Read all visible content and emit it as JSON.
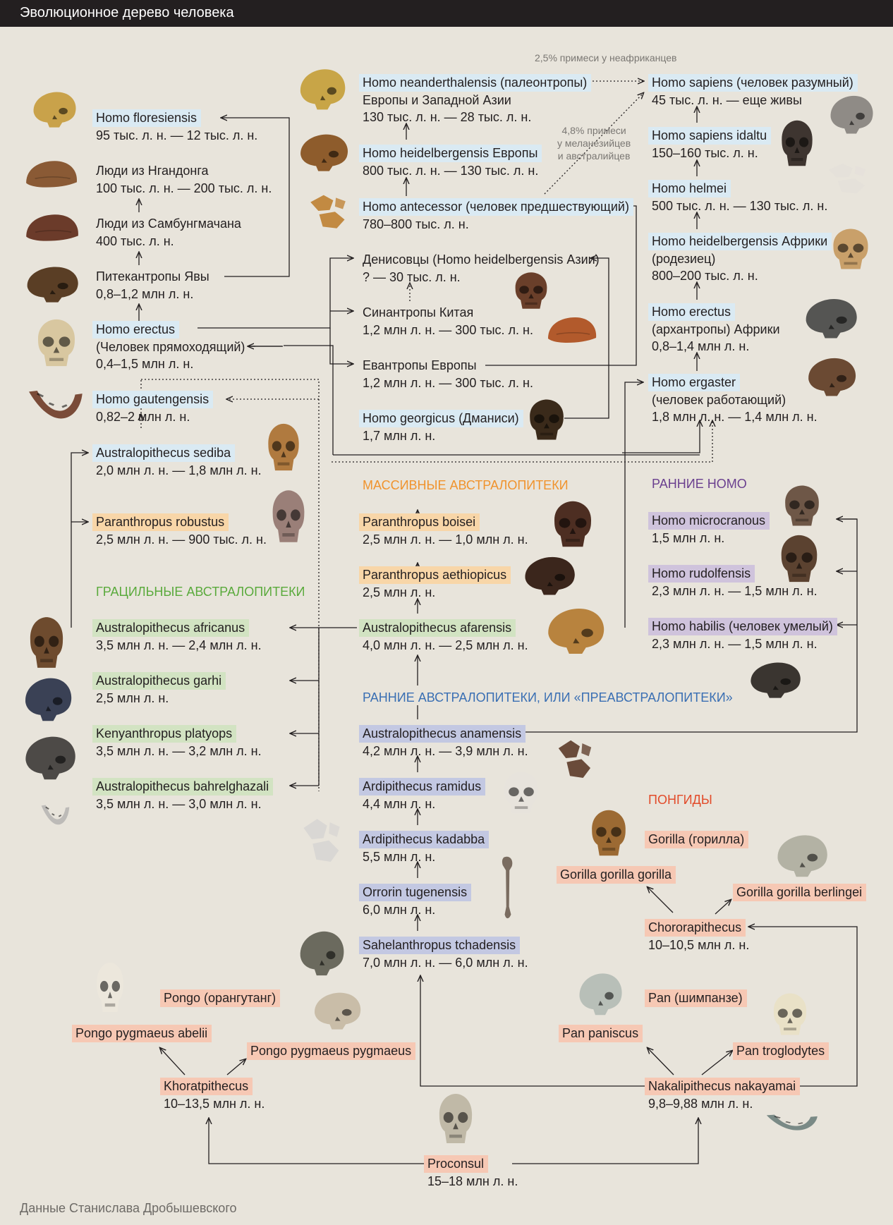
{
  "header": {
    "title": "Эволюционное дерево человека"
  },
  "footer": {
    "source": "Данные Станислава Дробышевского"
  },
  "groups": {
    "massive": "МАССИВНЫЕ АВСТРАЛОПИТЕКИ",
    "early_homo": "РАННИЕ HOMO",
    "gracile": "ГРАЦИЛЬНЫЕ АВСТРАЛОПИТЕКИ",
    "early_australopiths": "РАННИЕ АВСТРАЛОПИТЕКИ, ИЛИ «ПРЕАВСТРАЛОПИТЕКИ»",
    "pongids": "ПОНГИДЫ"
  },
  "colors": {
    "homo": "#daeaf3",
    "early_homo": "#cfc3dc",
    "gracile": "#d2e3c2",
    "massive": "#f8d6a8",
    "early_australopiths": "#c3c8e2",
    "apes": "#f6c8b4",
    "group_massive": "#f0932d",
    "group_early_homo": "#6a3f8f",
    "group_gracile": "#5aaa3c",
    "group_early_australopiths": "#3a6fb3",
    "group_pongids": "#e24b2a"
  },
  "notes": {
    "admix_non_african": "2,5% примеси у неафриканцев",
    "admix_melanesian": [
      "4,8% примеси",
      "у меланезийцев",
      "и австралийцев"
    ]
  },
  "nodes": {
    "floresiensis": {
      "name": "Homo floresiensis",
      "lines": [
        "95 тыс. л. н. — 12 тыс. л. н."
      ]
    },
    "ngandong": {
      "name": "Люди из Нгандонга",
      "lines": [
        "100 тыс. л. н. — 200 тыс. л. н."
      ]
    },
    "sambungmachan": {
      "name": "Люди из Самбунгмачана",
      "lines": [
        "400 тыс. л. н."
      ]
    },
    "java": {
      "name": "Питекантропы Явы",
      "lines": [
        "0,8–1,2 млн л. н."
      ]
    },
    "erectus": {
      "name": "Homo erectus",
      "lines": [
        "(Человек прямоходящий)",
        "0,4–1,5 млн л. н."
      ]
    },
    "gautengensis": {
      "name": "Homo gautengensis",
      "lines": [
        "0,82–2 млн л. н."
      ]
    },
    "sediba": {
      "name": "Australopithecus sediba",
      "lines": [
        "2,0 млн л. н. — 1,8 млн л. н."
      ]
    },
    "robustus": {
      "name": "Paranthropus robustus",
      "lines": [
        "2,5 млн л. н. — 900 тыс. л. н."
      ]
    },
    "africanus": {
      "name": "Australopithecus africanus",
      "lines": [
        "3,5 млн л. н. — 2,4 млн л. н."
      ]
    },
    "garhi": {
      "name": "Australopithecus garhi",
      "lines": [
        "2,5 млн л. н."
      ]
    },
    "platyops": {
      "name": "Kenyanthropus platyops",
      "lines": [
        "3,5 млн л. н. — 3,2 млн л. н."
      ]
    },
    "bahrelghazali": {
      "name": "Australopithecus bahrelghazali",
      "lines": [
        "3,5 млн л. н. — 3,0 млн л. н."
      ]
    },
    "neanderthalensis": {
      "name": "Homo neanderthalensis (палеонтропы)",
      "lines": [
        "Европы и Западной Азии",
        "130 тыс. л. н. — 28 тыс. л. н."
      ]
    },
    "heidelbergensis_eu": {
      "name": "Homo heidelbergensis Европы",
      "lines": [
        "800 тыс. л. н. — 130 тыс. л. н."
      ]
    },
    "antecessor": {
      "name": "Homo antecessor (человек предшествующий)",
      "lines": [
        "780–800 тыс. л. н."
      ]
    },
    "denisovans": {
      "name": "Денисовцы (Homo heidelbergensis Азии)",
      "lines": [
        "? — 30 тыс. л. н."
      ]
    },
    "sinanthropus": {
      "name": "Синантропы Китая",
      "lines": [
        "1,2 млн л. н. — 300 тыс. л. н."
      ]
    },
    "euanthropus": {
      "name": "Евантропы Европы",
      "lines": [
        "1,2 млн л. н. — 300 тыс. л. н."
      ]
    },
    "georgicus": {
      "name": "Homo georgicus (Дманиси)",
      "lines": [
        "1,7 млн л. н."
      ]
    },
    "boisei": {
      "name": "Paranthropus boisei",
      "lines": [
        "2,5 млн л. н. — 1,0 млн л. н."
      ]
    },
    "aethiopicus": {
      "name": "Paranthropus aethiopicus",
      "lines": [
        "2,5 млн л. н."
      ]
    },
    "afarensis": {
      "name": "Australopithecus afarensis",
      "lines": [
        "4,0 млн л. н. — 2,5 млн л. н."
      ]
    },
    "anamensis": {
      "name": "Australopithecus anamensis",
      "lines": [
        "4,2 млн л. н. — 3,9 млн л. н."
      ]
    },
    "ramidus": {
      "name": "Ardipithecus ramidus",
      "lines": [
        "4,4 млн л. н."
      ]
    },
    "kadabba": {
      "name": "Ardipithecus kadabba",
      "lines": [
        "5,5 млн л. н."
      ]
    },
    "orrorin": {
      "name": "Orrorin tugenensis",
      "lines": [
        "6,0 млн л. н."
      ]
    },
    "sahelanthropus": {
      "name": "Sahelanthropus tchadensis",
      "lines": [
        "7,0 млн л. н. — 6,0 млн л. н."
      ]
    },
    "sapiens": {
      "name": "Homo sapiens (человек разумный)",
      "lines": [
        "45 тыс. л. н. — еще живы"
      ]
    },
    "idaltu": {
      "name": "Homo sapiens idaltu",
      "lines": [
        "150–160 тыс. л. н."
      ]
    },
    "helmei": {
      "name": "Homo helmei",
      "lines": [
        "500 тыс. л. н. — 130 тыс. л. н."
      ]
    },
    "heidelbergensis_af": {
      "name": "Homo heidelbergensis Африки",
      "lines": [
        "(родезиец)",
        "800–200 тыс. л. н."
      ]
    },
    "erectus_af": {
      "name": "Homo erectus",
      "lines": [
        "(архантропы) Африки",
        "0,8–1,4 млн л. н."
      ]
    },
    "ergaster": {
      "name": "Homo ergaster",
      "lines": [
        "(человек работающий)",
        "1,8 млн л. н. — 1,4 млн л. н."
      ]
    },
    "microcranous": {
      "name": "Homo microcranous",
      "lines": [
        "1,5 млн л. н."
      ]
    },
    "rudolfensis": {
      "name": "Homo rudolfensis",
      "lines": [
        "2,3 млн л. н. — 1,5 млн л. н."
      ]
    },
    "habilis": {
      "name": "Homo habilis (человек умелый)",
      "lines": [
        "2,3 млн л. н. — 1,5 млн л. н."
      ]
    },
    "gorilla": {
      "name": "Gorilla (горилла)",
      "lines": []
    },
    "gorilla_gorilla": {
      "name": "Gorilla gorilla gorilla",
      "lines": []
    },
    "gorilla_berlingei": {
      "name": "Gorilla gorilla berlingei",
      "lines": []
    },
    "chororapithecus": {
      "name": "Chororapithecus",
      "lines": [
        "10–10,5 млн л. н."
      ]
    },
    "pan": {
      "name": "Pan (шимпанзе)",
      "lines": []
    },
    "pan_paniscus": {
      "name": "Pan paniscus",
      "lines": []
    },
    "pan_troglodytes": {
      "name": "Pan troglodytes",
      "lines": []
    },
    "nakalipithecus": {
      "name": "Nakalipithecus nakayamai",
      "lines": [
        "9,8–9,88 млн л. н."
      ]
    },
    "pongo": {
      "name": "Pongo (орангутанг)",
      "lines": []
    },
    "pongo_abelii": {
      "name": "Pongo pygmaeus abelii",
      "lines": []
    },
    "pongo_pygmaeus": {
      "name": "Pongo pygmaeus pygmaeus",
      "lines": []
    },
    "khoratpithecus": {
      "name": "Khoratpithecus",
      "lines": [
        "10–13,5 млн л. н."
      ]
    },
    "proconsul": {
      "name": "Proconsul",
      "lines": [
        "15–18 млн л. н."
      ]
    }
  },
  "fossil_images": [
    "floresiensis-skull",
    "ngandong-skull",
    "sambungmachan-skull",
    "java-skull",
    "erectus-skull",
    "gautengensis-jaw",
    "sediba-skull",
    "robustus-skull",
    "africanus-skull",
    "garhi-skull",
    "platyops-skull",
    "bahrelghazali-jaw",
    "neanderthal-skull",
    "heidelbergensis-eu-skull",
    "antecessor-fragments",
    "denisovan-skull",
    "sinanthropus-skull",
    "georgicus-skull",
    "sapiens-skull",
    "idaltu-skull",
    "helmei-skull",
    "rhodesian-skull",
    "erectus-africa-skull",
    "ergaster-skull",
    "boisei-skull",
    "aethiopicus-skull",
    "afarensis-skull",
    "anamensis-fragments",
    "microcranous-skull",
    "rudolfensis-skull",
    "habilis-skull",
    "ramidus-skull",
    "kadabba-fragments",
    "orrorin-femur",
    "sahelanthropus-skull",
    "gorilla-skull",
    "gorilla-berlingei-skull",
    "pan-paniscus-skull",
    "pan-troglodytes-skull",
    "nakalipithecus-jaw",
    "pongo-abelii-skull",
    "pongo-pygmaeus-skull",
    "proconsul-skull"
  ]
}
